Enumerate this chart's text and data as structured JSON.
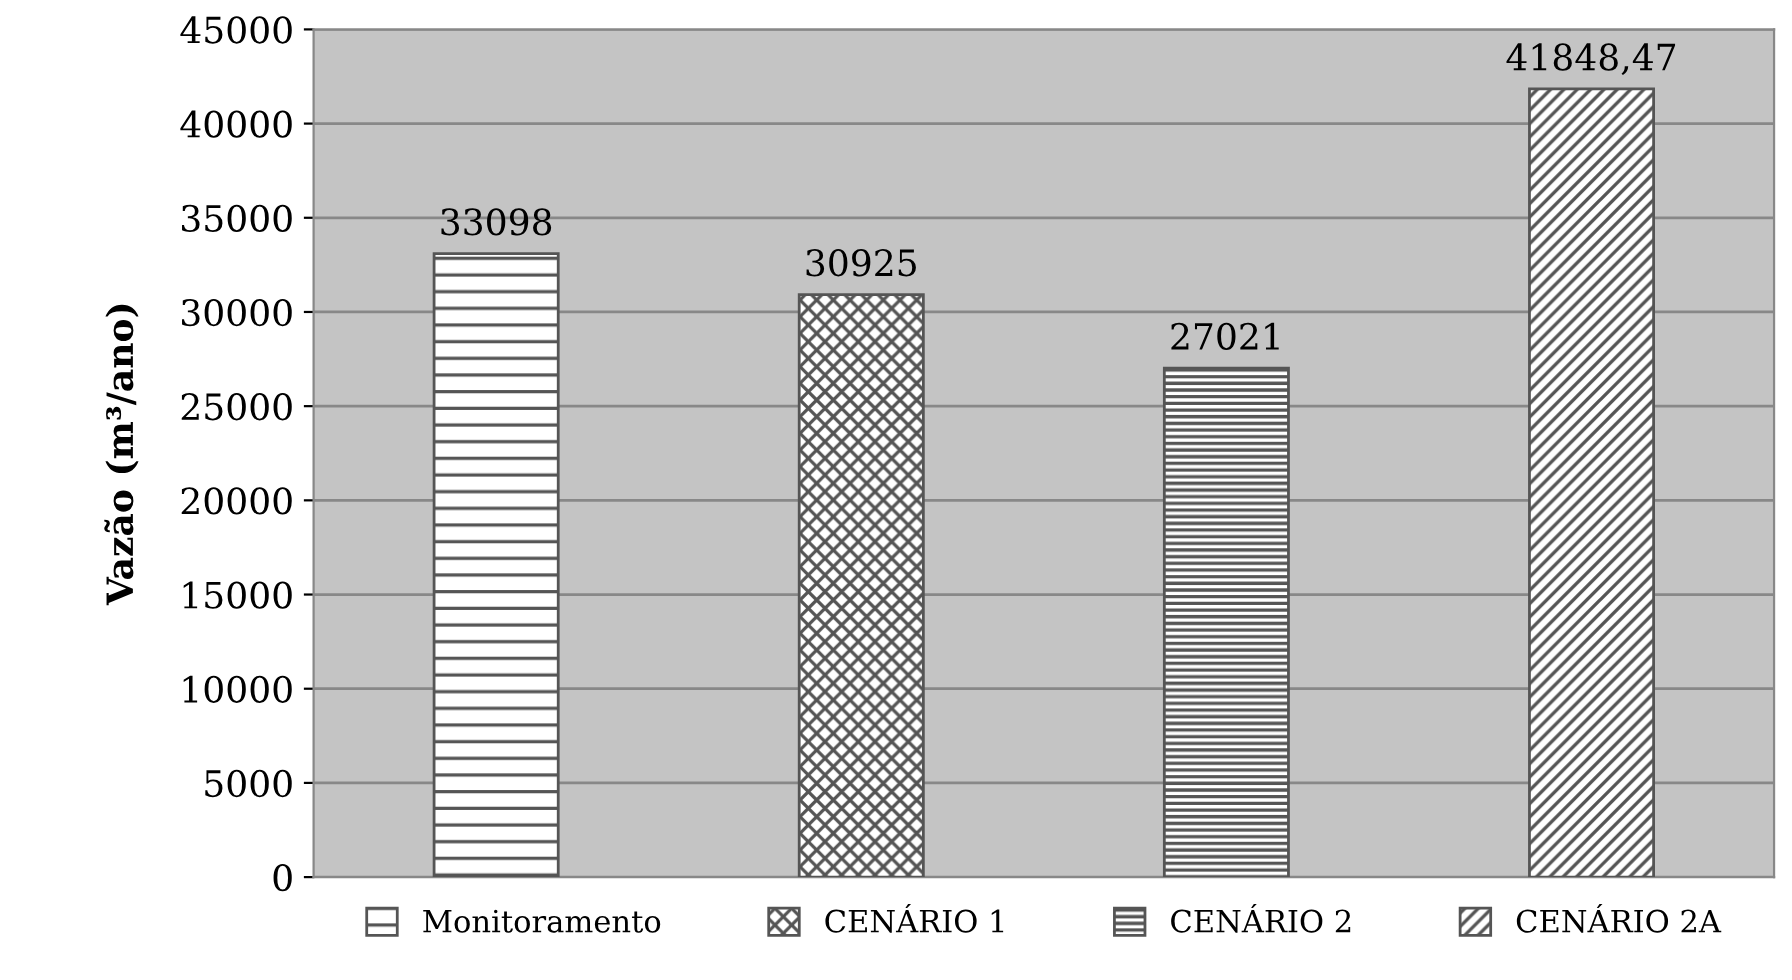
{
  "chart_data": {
    "type": "bar",
    "ylabel": "Vazão (m³/ano)",
    "categories": [
      null,
      null,
      null,
      null
    ],
    "series": [
      {
        "name": "Monitoramento",
        "color": "#555555",
        "values": [
          33098,
          null,
          null,
          null
        ],
        "value_labels": [
          "33098",
          null,
          null,
          null
        ]
      },
      {
        "name": "CENÁRIO 1",
        "color": "#555555",
        "values": [
          null,
          30925,
          null,
          null
        ],
        "value_labels": [
          null,
          "30925",
          null,
          null
        ]
      },
      {
        "name": "CENÁRIO 2",
        "color": "#555555",
        "values": [
          null,
          null,
          27021,
          null
        ],
        "value_labels": [
          null,
          null,
          "27021",
          null
        ]
      },
      {
        "name": "CENÁRIO 2A",
        "color": "#555555",
        "values": [
          null,
          null,
          null,
          41848.47
        ],
        "value_labels": [
          null,
          null,
          null,
          "41848,47"
        ]
      }
    ],
    "ylim": [
      0,
      45000
    ],
    "yticks": [
      0,
      5000,
      10000,
      15000,
      20000,
      25000,
      30000,
      35000,
      40000,
      45000
    ],
    "grid": "y",
    "legend": "bottom"
  }
}
